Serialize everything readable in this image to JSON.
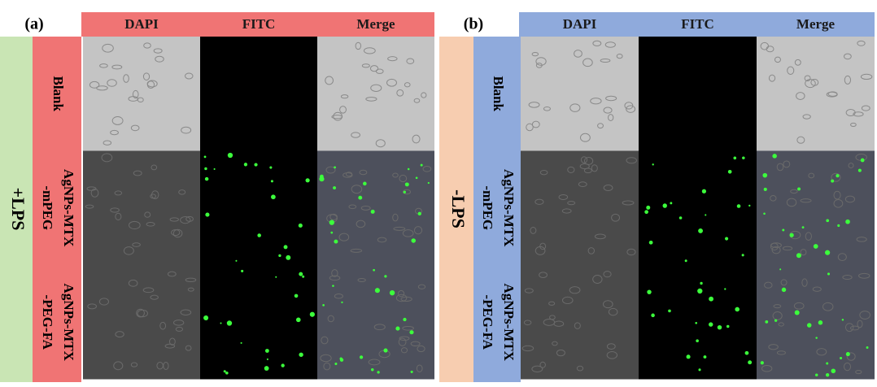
{
  "panels": [
    {
      "label": "(a)",
      "condition": "+LPS",
      "columns": [
        "DAPI",
        "FITC",
        "Merge"
      ],
      "rows": [
        [
          "Blank"
        ],
        [
          "AgNPs-MTX",
          "-mPEG"
        ],
        [
          "AgNPs-MTX",
          "-PEG-FA"
        ]
      ]
    },
    {
      "label": "(b)",
      "condition": "-LPS",
      "columns": [
        "DAPI",
        "FITC",
        "Merge"
      ],
      "rows": [
        [
          "Blank"
        ],
        [
          "AgNPs-MTX",
          "-mPEG"
        ],
        [
          "AgNPs-MTX",
          "-PEG-FA"
        ]
      ]
    }
  ]
}
